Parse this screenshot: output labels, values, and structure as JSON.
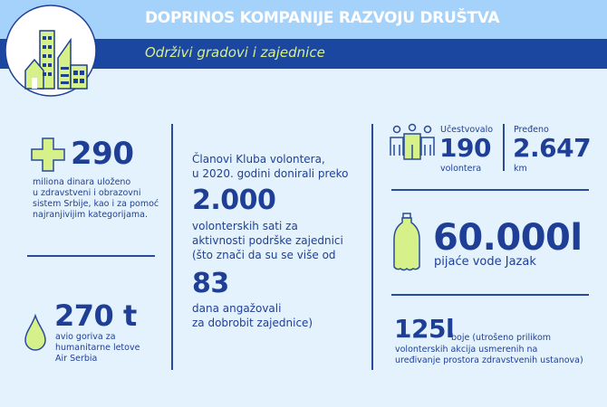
{
  "header": {
    "title": "DOPRINOS KOMPANIJE RAZVOJU DRUŠTVA",
    "subtitle": "Održivi gradovi i zajednice",
    "icon": "city-buildings-icon"
  },
  "colors": {
    "navy": "#1f3f96",
    "dark_band": "#1c47a1",
    "light_band": "#a5d2fb",
    "accent_green": "#d6f08a",
    "background": "#e4f2fe"
  },
  "health": {
    "icon": "plus-cross-icon",
    "value": "290",
    "lines": [
      "miliona dinara uloženo",
      "u zdravstveni i obrazovni",
      "sistem Srbije, kao i za pomoć",
      "najranjivijim kategorijama."
    ]
  },
  "fuel": {
    "icon": "drop-icon",
    "value": "270 t",
    "lines": [
      "avio goriva za",
      "humanitarne letove",
      "Air Serbia"
    ]
  },
  "volunteer_club": {
    "intro": [
      "Članovi Kluba volontera,",
      "u 2020. godini donirali preko"
    ],
    "hours_value": "2.000",
    "hours_lines": [
      "volonterskih sati za",
      "aktivnosti podrške zajednici",
      "(što znači da su se više od"
    ],
    "days_value": "83",
    "days_lines": [
      "dana angažovali",
      "za dobrobit zajednice)"
    ]
  },
  "participants": {
    "icon": "people-group-icon",
    "label": "Učestvovalo",
    "value": "190",
    "unit": "volontera"
  },
  "distance": {
    "label": "Pređeno",
    "value": "2.647",
    "unit": "km"
  },
  "water": {
    "icon": "bottle-icon",
    "value": "60.000l",
    "desc": "pijaće vode Jazak"
  },
  "paint": {
    "value": "125l",
    "desc_inline": "boje (utrošeno prilikom",
    "lines": [
      "volonterskih akcija usmerenih na",
      "uređivanje  prostora zdravstvenih ustanova)"
    ]
  }
}
